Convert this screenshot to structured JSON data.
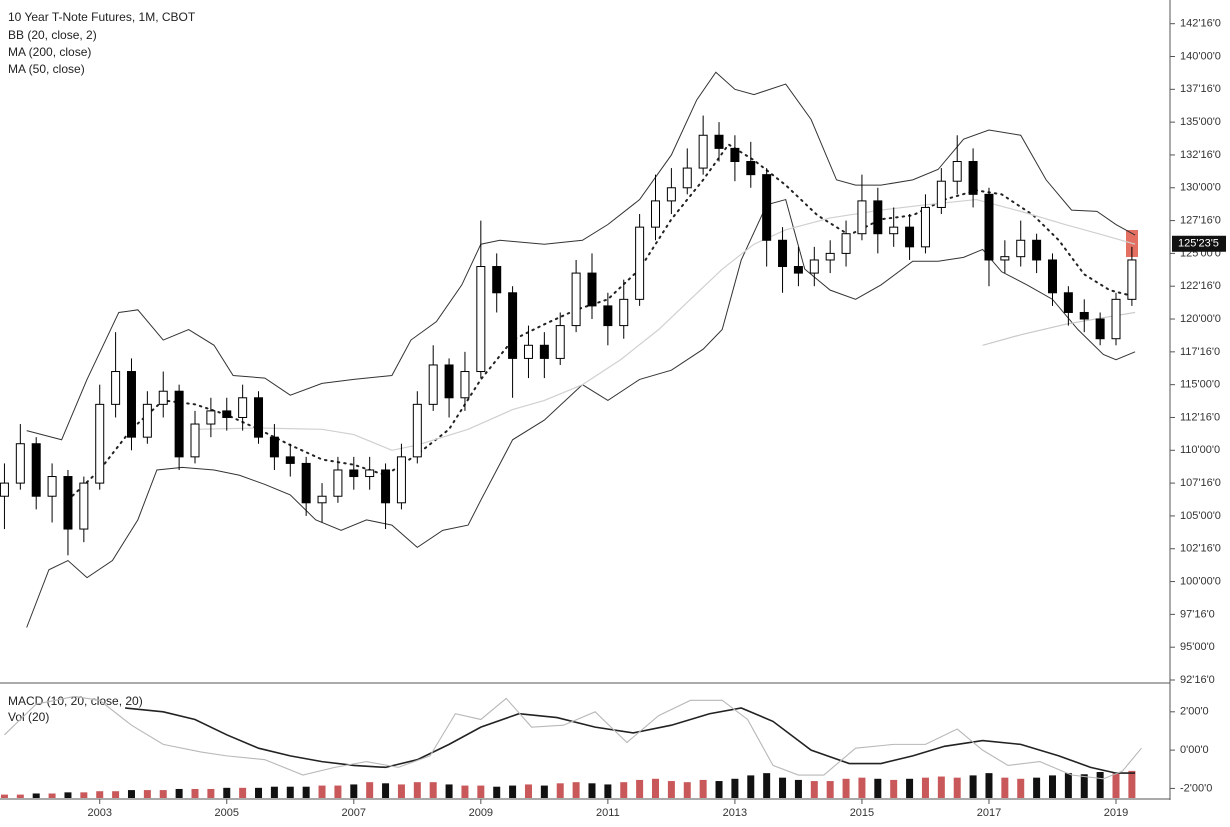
{
  "chart_data": [
    {
      "type": "candlestick",
      "title": "10 Year T-Note Futures, 1M, CBOT",
      "xlim": [
        2001.43,
        2019.85
      ],
      "ylim": [
        92.5,
        144
      ],
      "yticks": [
        {
          "value": 142.5,
          "label": "142'16'0"
        },
        {
          "value": 140,
          "label": "140'00'0"
        },
        {
          "value": 137.5,
          "label": "137'16'0"
        },
        {
          "value": 135,
          "label": "135'00'0"
        },
        {
          "value": 132.5,
          "label": "132'16'0"
        },
        {
          "value": 130,
          "label": "130'00'0"
        },
        {
          "value": 127.5,
          "label": "127'16'0"
        },
        {
          "value": 125,
          "label": "125'00'0"
        },
        {
          "value": 122.5,
          "label": "122'16'0"
        },
        {
          "value": 120,
          "label": "120'00'0"
        },
        {
          "value": 117.5,
          "label": "117'16'0"
        },
        {
          "value": 115,
          "label": "115'00'0"
        },
        {
          "value": 112.5,
          "label": "112'16'0"
        },
        {
          "value": 110,
          "label": "110'00'0"
        },
        {
          "value": 107.5,
          "label": "107'16'0"
        },
        {
          "value": 105,
          "label": "105'00'0"
        },
        {
          "value": 102.5,
          "label": "102'16'0"
        },
        {
          "value": 100,
          "label": "100'00'0"
        },
        {
          "value": 97.5,
          "label": "97'16'0"
        },
        {
          "value": 95,
          "label": "95'00'0"
        },
        {
          "value": 92.5,
          "label": "92'16'0"
        }
      ],
      "last_price": {
        "value": 125.734,
        "label": "125'23'5"
      },
      "up_color": "#ffffff",
      "down_color": "#000000",
      "x": [
        2001.5,
        2001.75,
        2002,
        2002.25,
        2002.5,
        2002.75,
        2003,
        2003.25,
        2003.5,
        2003.75,
        2004,
        2004.25,
        2004.5,
        2004.75,
        2005,
        2005.25,
        2005.5,
        2005.75,
        2006,
        2006.25,
        2006.5,
        2006.75,
        2007,
        2007.25,
        2007.5,
        2007.75,
        2008,
        2008.25,
        2008.5,
        2008.75,
        2009,
        2009.25,
        2009.5,
        2009.75,
        2010,
        2010.25,
        2010.5,
        2010.75,
        2011,
        2011.25,
        2011.5,
        2011.75,
        2012,
        2012.25,
        2012.5,
        2012.75,
        2013,
        2013.25,
        2013.5,
        2013.75,
        2014,
        2014.25,
        2014.5,
        2014.75,
        2015,
        2015.25,
        2015.5,
        2015.75,
        2016,
        2016.25,
        2016.5,
        2016.75,
        2017,
        2017.25,
        2017.5,
        2017.75,
        2018,
        2018.25,
        2018.5,
        2018.75,
        2019,
        2019.25
      ],
      "open": [
        106.5,
        107.5,
        110.5,
        106.5,
        108,
        104,
        107.5,
        113.5,
        116,
        111,
        113.5,
        114.5,
        109.5,
        112,
        113,
        112.5,
        114,
        111,
        109.5,
        109,
        106,
        106.5,
        108.5,
        108,
        108.5,
        106,
        109.5,
        113.5,
        116.5,
        114,
        116,
        124,
        122,
        117,
        118,
        117,
        119.5,
        123.5,
        121,
        119.5,
        121.5,
        127,
        129,
        130,
        131.5,
        134,
        133,
        132,
        131,
        126,
        124,
        123.5,
        124.5,
        125,
        126.5,
        129,
        126.5,
        127,
        125.5,
        128.5,
        130.5,
        132,
        129.5,
        124.5,
        124.75,
        126,
        124.5,
        122,
        120.5,
        120,
        118.5,
        121.5
      ],
      "high": [
        109,
        112,
        111,
        109,
        108.5,
        108,
        115,
        119,
        117,
        114.5,
        116,
        115,
        113,
        114,
        114,
        115,
        114.5,
        112,
        110.5,
        109.5,
        107.5,
        109.5,
        109.5,
        109.5,
        109,
        110.5,
        114.5,
        118,
        117,
        117.5,
        127.5,
        125,
        122.5,
        119.5,
        119,
        120.5,
        124.5,
        125,
        122,
        123,
        128,
        131,
        131.5,
        133,
        135.5,
        135,
        134,
        133.5,
        131.5,
        127,
        125.5,
        125.5,
        126,
        127.5,
        131,
        130,
        128.5,
        128,
        129.5,
        131.5,
        134,
        133,
        130,
        126,
        127.5,
        126.5,
        125,
        122.5,
        121.5,
        120.5,
        122,
        125.5
      ],
      "low": [
        104,
        107,
        105.5,
        104.5,
        102,
        103,
        107,
        112.5,
        110,
        110.5,
        112.5,
        108.5,
        109,
        111,
        111.5,
        111.5,
        110.5,
        108.5,
        108,
        105,
        104.5,
        106,
        107,
        107,
        104,
        105.5,
        109,
        113,
        112.5,
        113,
        115.5,
        120.5,
        114,
        115.5,
        115.5,
        116.5,
        119,
        120,
        118,
        118.5,
        121,
        126,
        128,
        129.5,
        131,
        132,
        130.5,
        130,
        124,
        122,
        122.5,
        122.5,
        123.5,
        124,
        126,
        125,
        125.5,
        124.5,
        125,
        128,
        129.5,
        128.5,
        122.5,
        123.5,
        124,
        123.5,
        121,
        119.5,
        119,
        118,
        118,
        121
      ],
      "close": [
        107.5,
        110.5,
        106.5,
        108,
        104,
        107.5,
        113.5,
        116,
        111,
        113.5,
        114.5,
        109.5,
        112,
        113,
        112.5,
        114,
        111,
        109.5,
        109,
        106,
        106.5,
        108.5,
        108,
        108.5,
        106,
        109.5,
        113.5,
        116.5,
        114,
        116,
        124,
        122,
        117,
        118,
        117,
        119.5,
        123.5,
        121,
        119.5,
        121.5,
        127,
        129,
        130,
        131.5,
        134,
        133,
        132,
        131,
        126,
        124,
        123.5,
        124.5,
        125,
        126.5,
        129,
        126.5,
        127,
        125.5,
        128.5,
        130.5,
        132,
        129.5,
        124.5,
        124.75,
        126,
        124.5,
        122,
        120.5,
        120,
        118.5,
        121.5,
        124.5
      ],
      "bollinger": {
        "name": "BB (20, close, 2)",
        "color": "#333333",
        "upper": {
          "x": [
            2001.85,
            2002.4,
            2002.8,
            2003.3,
            2003.6,
            2004,
            2004.4,
            2004.8,
            2005.1,
            2005.6,
            2006,
            2006.5,
            2007,
            2007.6,
            2007.9,
            2008.3,
            2008.7,
            2009,
            2009.3,
            2010,
            2010.6,
            2011,
            2011.5,
            2012,
            2012.4,
            2012.7,
            2013,
            2013.3,
            2013.8,
            2014.2,
            2014.6,
            2014.9,
            2015.3,
            2015.8,
            2016.2,
            2016.6,
            2017,
            2017.5,
            2017.9,
            2018.3,
            2018.7,
            2019,
            2019.3
          ],
          "values": [
            111.5,
            110.8,
            115.4,
            120.5,
            120.7,
            118.4,
            119.2,
            118,
            115.7,
            115.5,
            114.2,
            115.1,
            115.4,
            115.7,
            118.4,
            119.8,
            122.6,
            125.7,
            126,
            125.7,
            126,
            127.2,
            129.1,
            132.5,
            136.7,
            138.8,
            137.5,
            137.1,
            137.9,
            135.2,
            130.6,
            130.2,
            130.2,
            130.6,
            131.4,
            133.7,
            134.4,
            134,
            130.6,
            128.3,
            128.2,
            127.2,
            126.4
          ]
        },
        "lower": {
          "x": [
            2001.85,
            2002.2,
            2002.5,
            2002.8,
            2003.2,
            2003.6,
            2003.9,
            2004.3,
            2004.8,
            2005.2,
            2005.6,
            2006,
            2006.4,
            2006.8,
            2007.2,
            2007.6,
            2008,
            2008.4,
            2008.8,
            2009,
            2009.5,
            2010,
            2010.6,
            2011,
            2011.5,
            2012,
            2012.5,
            2012.8,
            2013.1,
            2013.5,
            2013.8,
            2014.1,
            2014.5,
            2014.9,
            2015.3,
            2015.8,
            2016.2,
            2016.6,
            2016.9,
            2017.2,
            2017.6,
            2018,
            2018.4,
            2018.8,
            2019,
            2019.3
          ],
          "values": [
            96.5,
            100.9,
            101.6,
            100.3,
            101.6,
            104.7,
            108.5,
            108.7,
            108.5,
            108.1,
            107.4,
            106.6,
            104.7,
            103.9,
            104.7,
            104.3,
            102.6,
            103.9,
            104.3,
            106.2,
            110.8,
            112.3,
            115,
            113.8,
            115.4,
            116.1,
            117.7,
            119.2,
            124.5,
            128.7,
            129.1,
            123.8,
            122.2,
            121.5,
            122.6,
            124.4,
            124.4,
            124.7,
            125.3,
            123.6,
            122.6,
            121.5,
            119.2,
            117.3,
            116.9,
            117.5
          ]
        },
        "basis": {
          "dotted": true,
          "x": [
            2002.5,
            2003,
            2003.5,
            2004,
            2004.5,
            2005,
            2005.5,
            2006,
            2006.5,
            2007,
            2007.5,
            2008,
            2008.5,
            2009,
            2009.5,
            2010,
            2010.5,
            2011,
            2011.5,
            2012,
            2012.5,
            2012.9,
            2013.3,
            2013.8,
            2014.3,
            2014.8,
            2015.3,
            2015.8,
            2016.3,
            2016.8,
            2017.2,
            2017.7,
            2018.1,
            2018.5,
            2018.9,
            2019.3
          ],
          "values": [
            106.2,
            108.5,
            111.6,
            113.8,
            113.5,
            112.7,
            111.6,
            110.4,
            109.3,
            108.9,
            108.1,
            109.7,
            111.6,
            115.4,
            118.4,
            119.6,
            120.7,
            121.5,
            123.8,
            127.6,
            130.6,
            133.3,
            132.1,
            130.2,
            127.9,
            126.4,
            127.6,
            127.9,
            129.1,
            129.8,
            129.5,
            127.9,
            126,
            123.4,
            122.2,
            121.7
          ]
        }
      },
      "moving_averages": [
        {
          "name": "MA (200, close)",
          "color": "#c8c8c8",
          "x": [
            2016.9,
            2017.5,
            2018.2,
            2018.8,
            2019.3
          ],
          "values": [
            118,
            118.8,
            119.6,
            120.1,
            120.5
          ]
        },
        {
          "name": "MA (50, close)",
          "color": "#d0d0d0",
          "x": [
            2004.5,
            2005.5,
            2006.5,
            2007,
            2007.6,
            2008,
            2008.8,
            2009.5,
            2010,
            2010.6,
            2011.2,
            2011.8,
            2012.3,
            2012.8,
            2013.3,
            2013.8,
            2014.5,
            2015.3,
            2016,
            2016.8,
            2017.5,
            2018.2,
            2018.8,
            2019.3
          ],
          "values": [
            111.6,
            111.7,
            111.6,
            111.2,
            110,
            110.4,
            111.6,
            113.1,
            113.8,
            115,
            116.9,
            119.2,
            121.5,
            123.8,
            125.7,
            126.8,
            127.7,
            128.3,
            128.7,
            129.1,
            128.2,
            127.2,
            126.4,
            125.7
          ]
        }
      ]
    },
    {
      "type": "line",
      "title": "MACD (10, 20, close, 20)",
      "xlim": [
        2001.43,
        2019.85
      ],
      "ylim": [
        -2.5,
        3.4
      ],
      "xticks": [
        2003,
        2005,
        2007,
        2009,
        2011,
        2013,
        2015,
        2017,
        2019
      ],
      "yticks": [
        {
          "value": 2,
          "label": "2'00'0"
        },
        {
          "value": 0,
          "label": "0'00'0"
        },
        {
          "value": -2,
          "label": "-2'00'0"
        }
      ],
      "series": [
        {
          "color": "#222222",
          "x": [
            2003.4,
            2004,
            2004.5,
            2005,
            2005.5,
            2006,
            2006.5,
            2007,
            2007.5,
            2008,
            2008.5,
            2009,
            2009.6,
            2010.2,
            2010.8,
            2011.4,
            2012,
            2012.6,
            2013.1,
            2013.6,
            2014.2,
            2014.8,
            2015.3,
            2015.8,
            2016.3,
            2016.9,
            2017.5,
            2018.1,
            2018.6,
            2019,
            2019.3
          ],
          "values": [
            2.2,
            2,
            1.6,
            0.8,
            0.1,
            -0.3,
            -0.6,
            -0.8,
            -0.9,
            -0.5,
            0.3,
            1.2,
            1.9,
            1.7,
            1.2,
            0.9,
            1.3,
            1.9,
            2.2,
            1.5,
            0,
            -0.7,
            -0.7,
            -0.3,
            0.2,
            0.5,
            0.3,
            -0.3,
            -0.9,
            -1.2,
            -1.2
          ]
        },
        {
          "color": "#b8b8b8",
          "x": [
            2001.5,
            2002,
            2002.6,
            2003,
            2003.5,
            2004,
            2004.6,
            2005,
            2005.6,
            2006.2,
            2006.7,
            2007.2,
            2007.7,
            2008.2,
            2008.6,
            2009,
            2009.4,
            2009.8,
            2010.3,
            2010.8,
            2011.3,
            2011.8,
            2012.3,
            2012.8,
            2013.2,
            2013.6,
            2014,
            2014.4,
            2014.9,
            2015.5,
            2016,
            2016.5,
            2016.9,
            2017.3,
            2017.8,
            2018.3,
            2018.8,
            2019.1,
            2019.4
          ],
          "values": [
            0.8,
            2.4,
            2.8,
            2.6,
            1.3,
            0.3,
            -0.1,
            -0.3,
            -0.5,
            -1.3,
            -0.9,
            -0.6,
            -0.9,
            -0.3,
            1.9,
            1.6,
            2.7,
            1.2,
            1.3,
            2,
            0.4,
            1.8,
            2.6,
            2.6,
            1.6,
            -0.8,
            -1.3,
            -1.3,
            0.1,
            0.3,
            0.3,
            1.1,
            0,
            -0.8,
            -0.6,
            -1.3,
            -1.5,
            -1.1,
            0.1
          ]
        }
      ],
      "volume": {
        "name": "Vol (20)",
        "ylim": [
          0,
          100
        ],
        "up_color": "#c9585a",
        "down_color": "#111111",
        "values": [
          3,
          3,
          4,
          4,
          5,
          5,
          6,
          6,
          7,
          7,
          7,
          8,
          8,
          8,
          9,
          9,
          9,
          10,
          10,
          10,
          11,
          11,
          12,
          14,
          13,
          12,
          14,
          14,
          12,
          11,
          11,
          10,
          11,
          12,
          11,
          13,
          14,
          13,
          12,
          14,
          16,
          17,
          15,
          14,
          16,
          15,
          17,
          20,
          22,
          18,
          16,
          15,
          15,
          17,
          18,
          17,
          16,
          17,
          18,
          19,
          18,
          20,
          22,
          18,
          17,
          18,
          20,
          22,
          21,
          23,
          22,
          24
        ]
      }
    }
  ]
}
